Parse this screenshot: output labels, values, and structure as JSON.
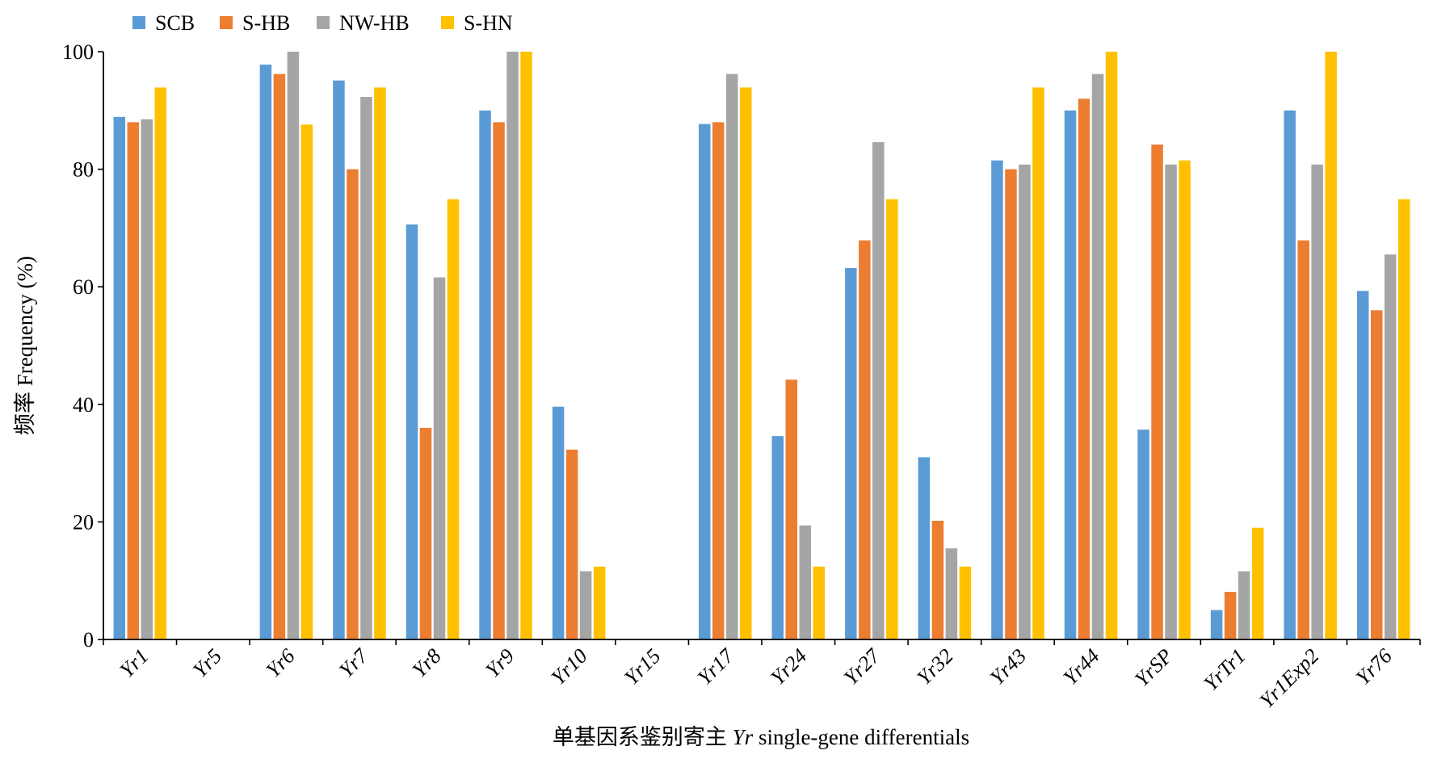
{
  "chart_data": {
    "type": "bar",
    "title": "",
    "xlabel_prefix": "单基因系鉴别寄主 ",
    "xlabel_italic": "Yr",
    "xlabel_suffix": " single-gene differentials",
    "ylabel": "频率 Frequency (%)",
    "ylim": [
      0,
      100
    ],
    "yticks": [
      0,
      20,
      40,
      60,
      80,
      100
    ],
    "grid": false,
    "legend_position": "top-left",
    "categories": [
      "Yr1",
      "Yr5",
      "Yr6",
      "Yr7",
      "Yr8",
      "Yr9",
      "Yr10",
      "Yr15",
      "Yr17",
      "Yr24",
      "Yr27",
      "Yr32",
      "Yr43",
      "Yr44",
      "YrSP",
      "YrTr1",
      "Yr1Exp2",
      "Yr76"
    ],
    "series": [
      {
        "name": "SCB",
        "color": "#5b9bd5",
        "values": [
          88.9,
          0,
          97.8,
          95.1,
          70.6,
          90.0,
          39.6,
          0,
          87.7,
          34.6,
          63.2,
          31.0,
          81.5,
          90.0,
          35.7,
          5.0,
          90.0,
          59.3
        ]
      },
      {
        "name": "S-HB",
        "color": "#ed7d31",
        "values": [
          88.0,
          0,
          96.2,
          80.0,
          36.0,
          88.0,
          32.3,
          0,
          88.0,
          44.2,
          67.9,
          20.2,
          80.0,
          92.0,
          84.2,
          8.1,
          67.9,
          56.0
        ]
      },
      {
        "name": "NW-HB",
        "color": "#a5a5a5",
        "values": [
          88.5,
          0,
          100,
          92.3,
          61.6,
          100,
          11.6,
          0,
          96.2,
          19.4,
          84.6,
          15.5,
          80.8,
          96.2,
          80.8,
          11.6,
          80.8,
          65.5
        ]
      },
      {
        "name": "S-HN",
        "color": "#ffc000",
        "values": [
          93.9,
          0,
          87.6,
          93.9,
          74.9,
          100,
          12.4,
          0,
          93.9,
          12.4,
          74.9,
          12.4,
          93.9,
          100,
          81.5,
          19.0,
          100,
          74.9
        ]
      }
    ]
  }
}
